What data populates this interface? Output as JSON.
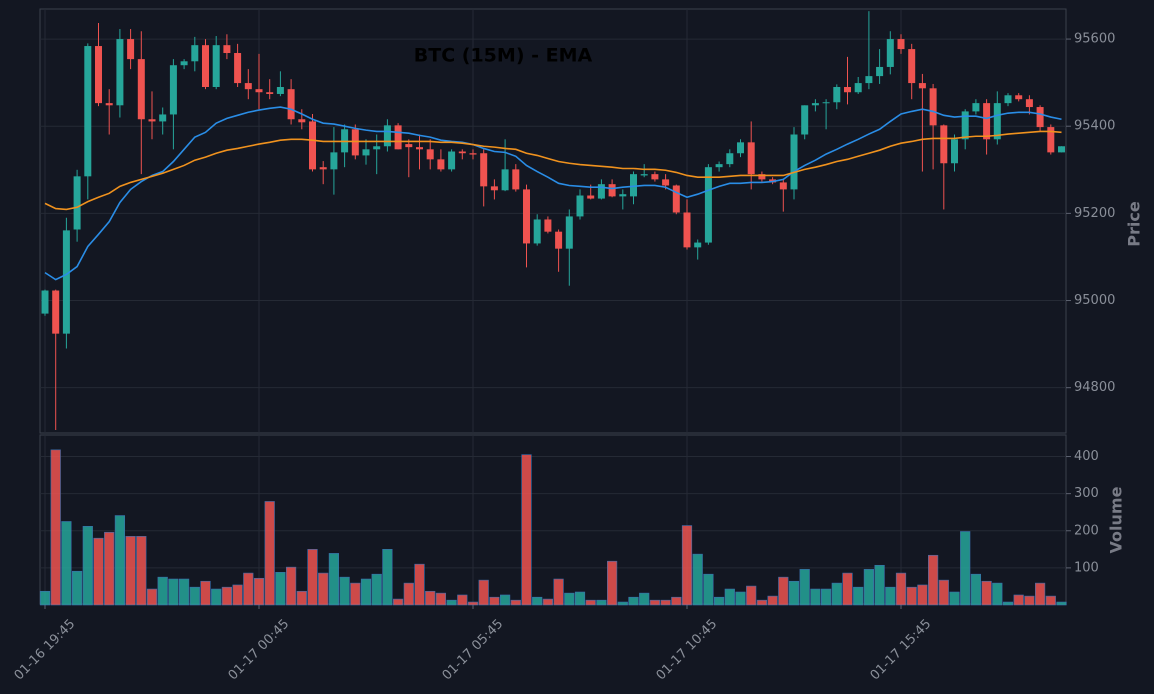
{
  "chart_data": [
    {
      "type": "candlestick",
      "title": "BTC (15M) - EMA",
      "ylabel": "Price",
      "categories": [
        "01-16 19:45",
        null,
        null,
        null,
        null,
        null,
        null,
        null,
        null,
        null,
        null,
        null,
        null,
        null,
        null,
        null,
        null,
        null,
        null,
        null,
        "01-17 00:45",
        null,
        null,
        null,
        null,
        null,
        null,
        null,
        null,
        null,
        null,
        null,
        null,
        null,
        null,
        null,
        null,
        null,
        null,
        null,
        "01-17 05:45",
        null,
        null,
        null,
        null,
        null,
        null,
        null,
        null,
        null,
        null,
        null,
        null,
        null,
        null,
        null,
        null,
        null,
        null,
        null,
        "01-17 10:45",
        null,
        null,
        null,
        null,
        null,
        null,
        null,
        null,
        null,
        null,
        null,
        null,
        null,
        null,
        null,
        null,
        null,
        null,
        null,
        "01-17 15:45",
        null,
        null,
        null,
        null,
        null,
        null,
        null,
        null,
        null,
        null,
        null,
        null,
        null,
        null,
        null
      ],
      "open": [
        94970,
        95023,
        94924,
        95163,
        95285,
        95584,
        95453,
        95448,
        95600,
        95554,
        95416,
        95411,
        95427,
        95540,
        95549,
        95586,
        95490,
        95586,
        95568,
        95499,
        95485,
        95478,
        95474,
        95485,
        95416,
        95411,
        95306,
        95301,
        95340,
        95393,
        95333,
        95347,
        95354,
        95402,
        95359,
        95352,
        95347,
        95324,
        95301,
        95342,
        95338,
        95338,
        95262,
        95253,
        95301,
        95255,
        95131,
        95186,
        95158,
        95119,
        95193,
        95241,
        95234,
        95267,
        95239,
        95239,
        95287,
        95290,
        95278,
        95264,
        95202,
        95122,
        95133,
        95306,
        95313,
        95338,
        95363,
        95290,
        95278,
        95271,
        95255,
        95381,
        95448,
        95453,
        95455,
        95490,
        95478,
        95499,
        95515,
        95536,
        95600,
        95577,
        95499,
        95487,
        95402,
        95315,
        95370,
        95434,
        95453,
        95370,
        95453,
        95471,
        95462,
        95444,
        95398,
        95340
      ],
      "high": [
        95025,
        95025,
        95190,
        95300,
        95590,
        95637,
        95485,
        95623,
        95623,
        95618,
        95480,
        95443,
        95554,
        95554,
        95605,
        95600,
        95607,
        95611,
        95589,
        95531,
        95566,
        95508,
        95526,
        95508,
        95439,
        95428,
        95320,
        95398,
        95404,
        95404,
        95370,
        95381,
        95416,
        95407,
        95370,
        95381,
        95370,
        95347,
        95347,
        95347,
        95347,
        95347,
        95278,
        95370,
        95313,
        95266,
        95198,
        95193,
        95163,
        95209,
        95255,
        95266,
        95278,
        95278,
        95255,
        95296,
        95313,
        95296,
        95290,
        95266,
        95232,
        95140,
        95313,
        95319,
        95347,
        95370,
        95411,
        95296,
        95283,
        95278,
        95398,
        95448,
        95462,
        95462,
        95496,
        95559,
        95513,
        95664,
        95577,
        95618,
        95611,
        95589,
        95520,
        95497,
        95404,
        95381,
        95439,
        95462,
        95462,
        95480,
        95476,
        95476,
        95471,
        95448,
        95404,
        95354
      ],
      "low": [
        94965,
        94703,
        94890,
        95135,
        95232,
        95446,
        95381,
        95420,
        95531,
        95290,
        95370,
        95381,
        95347,
        95531,
        95526,
        95485,
        95485,
        95554,
        95490,
        95462,
        95439,
        95462,
        95469,
        95404,
        95393,
        95296,
        95267,
        95243,
        95306,
        95324,
        95312,
        95290,
        95342,
        95347,
        95283,
        95301,
        95301,
        95296,
        95296,
        95324,
        95324,
        95216,
        95232,
        95251,
        95250,
        95076,
        95126,
        95154,
        95066,
        95034,
        95186,
        95232,
        95232,
        95237,
        95209,
        95221,
        95283,
        95273,
        95255,
        95198,
        95117,
        95094,
        95128,
        95296,
        95306,
        95329,
        95255,
        95273,
        95267,
        95204,
        95232,
        95370,
        95434,
        95393,
        95439,
        95450,
        95474,
        95485,
        95497,
        95519,
        95566,
        95462,
        95296,
        95301,
        95209,
        95296,
        95347,
        95427,
        95335,
        95358,
        95446,
        95457,
        95427,
        95388,
        95335,
        95340
      ],
      "close": [
        95023,
        94924,
        95161,
        95285,
        95584,
        95453,
        95448,
        95600,
        95554,
        95416,
        95411,
        95427,
        95540,
        95549,
        95586,
        95490,
        95586,
        95568,
        95499,
        95485,
        95478,
        95474,
        95490,
        95416,
        95409,
        95301,
        95301,
        95340,
        95393,
        95333,
        95347,
        95354,
        95402,
        95347,
        95352,
        95347,
        95324,
        95301,
        95342,
        95338,
        95335,
        95262,
        95253,
        95301,
        95255,
        95131,
        95186,
        95158,
        95119,
        95193,
        95241,
        95234,
        95267,
        95239,
        95244,
        95290,
        95290,
        95278,
        95264,
        95202,
        95122,
        95133,
        95306,
        95313,
        95338,
        95363,
        95290,
        95278,
        95271,
        95255,
        95381,
        95448,
        95453,
        95455,
        95490,
        95478,
        95499,
        95515,
        95536,
        95600,
        95577,
        95499,
        95487,
        95402,
        95315,
        95370,
        95434,
        95453,
        95370,
        95453,
        95471,
        95462,
        95444,
        95398,
        95340,
        95354
      ],
      "up_color": "#26a69a",
      "down_color": "#ef5350",
      "lines": [
        {
          "color": "#2a8de6",
          "values": [
            95064,
            95048,
            95060,
            95078,
            95124,
            95152,
            95181,
            95225,
            95255,
            95273,
            95287,
            95296,
            95319,
            95347,
            95375,
            95386,
            95407,
            95418,
            95425,
            95432,
            95437,
            95441,
            95444,
            95439,
            95428,
            95416,
            95407,
            95405,
            95400,
            95395,
            95391,
            95388,
            95388,
            95386,
            95384,
            95379,
            95375,
            95368,
            95365,
            95363,
            95358,
            95349,
            95342,
            95340,
            95331,
            95310,
            95296,
            95283,
            95269,
            95264,
            95262,
            95260,
            95260,
            95257,
            95260,
            95262,
            95264,
            95264,
            95260,
            95248,
            95237,
            95244,
            95253,
            95262,
            95269,
            95269,
            95271,
            95271,
            95273,
            95278,
            95296,
            95310,
            95322,
            95336,
            95347,
            95359,
            95370,
            95382,
            95393,
            95411,
            95428,
            95434,
            95439,
            95434,
            95425,
            95421,
            95423,
            95423,
            95418,
            95425,
            95430,
            95432,
            95432,
            95428,
            95421,
            95416
          ]
        },
        {
          "color": "#f0921e",
          "values": [
            95223,
            95211,
            95209,
            95214,
            95227,
            95237,
            95246,
            95262,
            95271,
            95278,
            95285,
            95292,
            95301,
            95310,
            95322,
            95329,
            95338,
            95345,
            95349,
            95354,
            95359,
            95363,
            95368,
            95370,
            95370,
            95368,
            95365,
            95365,
            95365,
            95365,
            95365,
            95365,
            95365,
            95365,
            95365,
            95365,
            95365,
            95363,
            95363,
            95361,
            95358,
            95354,
            95352,
            95349,
            95347,
            95338,
            95333,
            95326,
            95319,
            95315,
            95312,
            95310,
            95308,
            95306,
            95303,
            95303,
            95301,
            95301,
            95299,
            95294,
            95287,
            95283,
            95283,
            95283,
            95285,
            95287,
            95287,
            95287,
            95287,
            95287,
            95294,
            95301,
            95306,
            95312,
            95319,
            95324,
            95331,
            95338,
            95345,
            95354,
            95361,
            95365,
            95370,
            95372,
            95372,
            95372,
            95375,
            95377,
            95377,
            95379,
            95382,
            95384,
            95386,
            95388,
            95388,
            95386
          ]
        }
      ],
      "ylim": [
        94696,
        95669
      ],
      "yticks": [
        94800,
        95000,
        95200,
        95400,
        95600
      ],
      "grid": true
    },
    {
      "type": "bar",
      "ylabel": "Volume",
      "values": [
        37,
        418,
        225,
        91,
        212,
        180,
        196,
        241,
        185,
        185,
        43,
        75,
        70,
        70,
        48,
        64,
        43,
        48,
        54,
        86,
        72,
        279,
        88,
        102,
        37,
        150,
        86,
        139,
        75,
        59,
        70,
        83,
        150,
        16,
        59,
        110,
        37,
        32,
        13,
        27,
        8,
        67,
        21,
        27,
        13,
        405,
        21,
        16,
        70,
        32,
        35,
        13,
        13,
        118,
        8,
        21,
        32,
        13,
        13,
        21,
        214,
        137,
        83,
        21,
        43,
        35,
        51,
        13,
        24,
        75,
        64,
        96,
        43,
        43,
        59,
        86,
        48,
        96,
        107,
        48,
        86,
        48,
        54,
        134,
        67,
        35,
        198,
        83,
        64,
        59,
        8,
        27,
        24,
        59,
        24,
        8
      ],
      "ylim": [
        0,
        458
      ],
      "yticks": [
        100,
        200,
        300,
        400
      ],
      "grid": true
    }
  ]
}
